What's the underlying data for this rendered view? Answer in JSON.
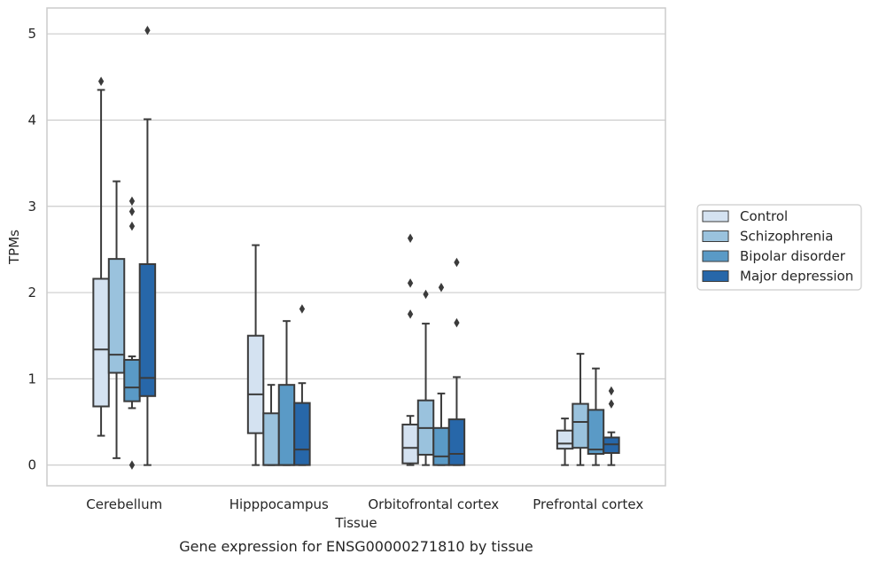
{
  "chart_data": {
    "type": "box",
    "title": "",
    "caption": "Gene expression for ENSG00000271810 by tissue",
    "xlabel": "Tissue",
    "ylabel": "TPMs",
    "ylim": [
      -0.24,
      5.3
    ],
    "yticks": [
      0,
      1,
      2,
      3,
      4,
      5
    ],
    "grid": "horizontal",
    "legend_position": "right",
    "categories": [
      "Cerebellum",
      "Hipppocampus",
      "Orbitofrontal cortex",
      "Prefrontal cortex"
    ],
    "series": [
      {
        "name": "Control",
        "color": "#d4e2f1",
        "boxes": [
          {
            "whislo": 0.34,
            "q1": 0.68,
            "med": 1.34,
            "q3": 2.16,
            "whishi": 4.35,
            "fliers": [
              4.45
            ]
          },
          {
            "whislo": 0.0,
            "q1": 0.37,
            "med": 0.82,
            "q3": 1.5,
            "whishi": 2.55,
            "fliers": []
          },
          {
            "whislo": 0.0,
            "q1": 0.02,
            "med": 0.2,
            "q3": 0.47,
            "whishi": 0.57,
            "fliers": [
              1.75,
              2.11,
              2.63
            ]
          },
          {
            "whislo": 0.0,
            "q1": 0.19,
            "med": 0.25,
            "q3": 0.4,
            "whishi": 0.54,
            "fliers": []
          }
        ]
      },
      {
        "name": "Schizophrenia",
        "color": "#9ac2dd",
        "boxes": [
          {
            "whislo": 0.08,
            "q1": 1.07,
            "med": 1.28,
            "q3": 2.39,
            "whishi": 3.29,
            "fliers": []
          },
          {
            "whislo": 0.0,
            "q1": 0.0,
            "med": 0.0,
            "q3": 0.6,
            "whishi": 0.93,
            "fliers": []
          },
          {
            "whislo": 0.0,
            "q1": 0.12,
            "med": 0.43,
            "q3": 0.75,
            "whishi": 1.64,
            "fliers": [
              1.98
            ]
          },
          {
            "whislo": 0.0,
            "q1": 0.2,
            "med": 0.5,
            "q3": 0.71,
            "whishi": 1.29,
            "fliers": []
          }
        ]
      },
      {
        "name": "Bipolar disorder",
        "color": "#5a9ac6",
        "boxes": [
          {
            "whislo": 0.66,
            "q1": 0.74,
            "med": 0.9,
            "q3": 1.22,
            "whishi": 1.26,
            "fliers": [
              0.0,
              2.77,
              2.94,
              3.06
            ]
          },
          {
            "whislo": 0.0,
            "q1": 0.0,
            "med": 0.0,
            "q3": 0.93,
            "whishi": 1.67,
            "fliers": []
          },
          {
            "whislo": 0.0,
            "q1": 0.0,
            "med": 0.1,
            "q3": 0.43,
            "whishi": 0.83,
            "fliers": [
              2.06
            ]
          },
          {
            "whislo": 0.0,
            "q1": 0.13,
            "med": 0.18,
            "q3": 0.64,
            "whishi": 1.12,
            "fliers": []
          }
        ]
      },
      {
        "name": "Major depression",
        "color": "#2767a9",
        "boxes": [
          {
            "whislo": 0.0,
            "q1": 0.8,
            "med": 1.01,
            "q3": 2.33,
            "whishi": 4.01,
            "fliers": [
              5.04
            ]
          },
          {
            "whislo": 0.0,
            "q1": 0.0,
            "med": 0.18,
            "q3": 0.72,
            "whishi": 0.95,
            "fliers": [
              1.81
            ]
          },
          {
            "whislo": 0.0,
            "q1": 0.0,
            "med": 0.13,
            "q3": 0.53,
            "whishi": 1.02,
            "fliers": [
              1.65,
              2.35
            ]
          },
          {
            "whislo": 0.0,
            "q1": 0.14,
            "med": 0.24,
            "q3": 0.32,
            "whishi": 0.38,
            "fliers": [
              0.71,
              0.86
            ]
          }
        ]
      }
    ]
  }
}
